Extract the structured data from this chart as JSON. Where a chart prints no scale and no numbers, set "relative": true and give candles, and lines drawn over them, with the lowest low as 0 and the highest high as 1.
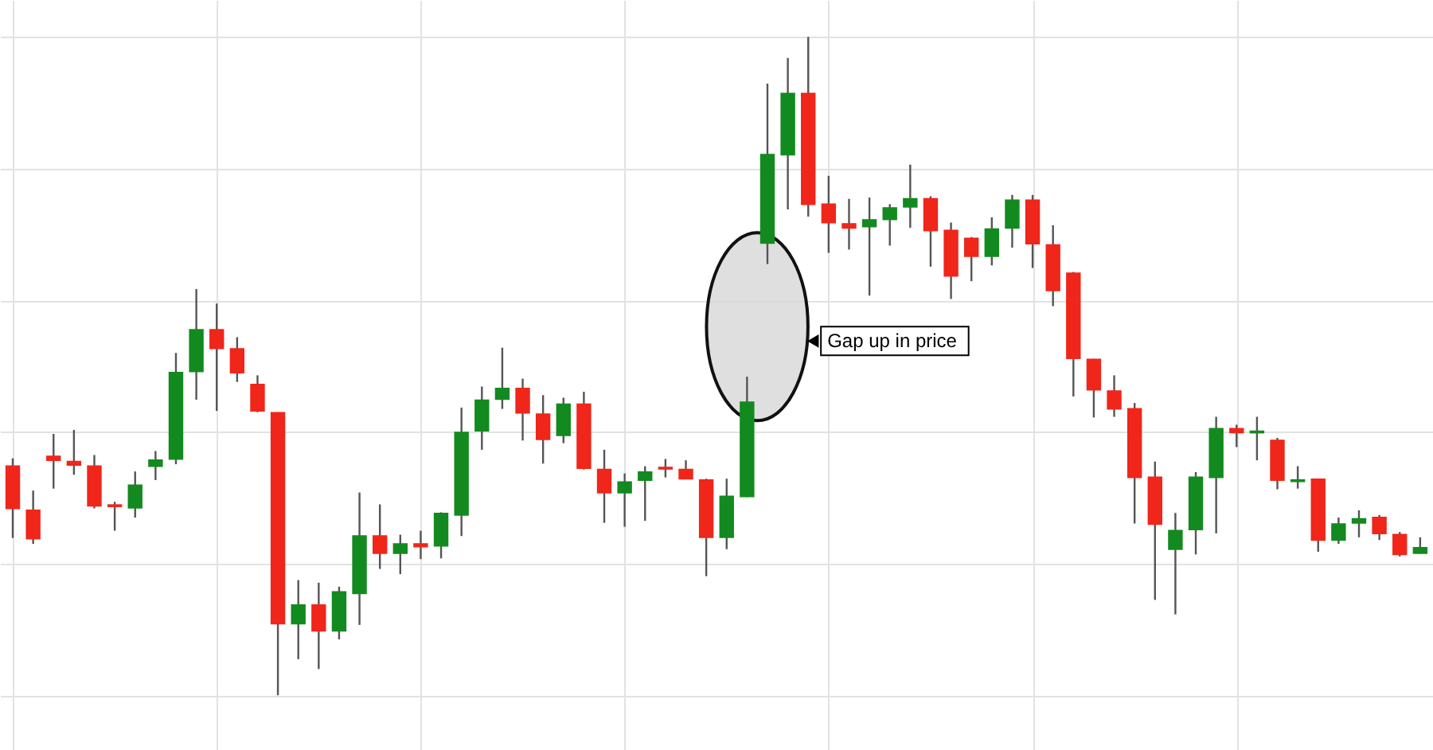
{
  "chart_data": {
    "type": "candlestick",
    "relative": true,
    "grid": true,
    "categories": [
      null,
      null,
      null,
      null,
      null,
      null,
      null,
      null,
      null,
      null,
      null,
      null,
      null,
      null,
      null,
      null,
      null,
      null,
      null,
      null,
      null,
      null,
      null,
      null,
      null,
      null,
      null,
      null,
      null,
      null,
      null,
      null,
      null,
      null,
      null,
      null,
      null,
      null,
      null,
      null,
      null,
      null,
      null,
      null,
      null,
      null,
      null,
      null,
      null,
      null,
      null,
      null,
      null,
      null,
      null,
      null,
      null,
      null,
      null,
      null,
      null,
      null,
      null,
      null,
      null,
      null,
      null,
      null,
      null,
      null
    ],
    "ohlc": [
      [
        0.348,
        0.36,
        0.239,
        0.284
      ],
      [
        0.281,
        0.311,
        0.23,
        0.238
      ],
      [
        0.363,
        0.397,
        0.314,
        0.357
      ],
      [
        0.355,
        0.403,
        0.335,
        0.35
      ],
      [
        0.348,
        0.365,
        0.284,
        0.288
      ],
      [
        0.289,
        0.294,
        0.25,
        0.287
      ],
      [
        0.285,
        0.34,
        0.27,
        0.319
      ],
      [
        0.348,
        0.371,
        0.327,
        0.357
      ],
      [
        0.359,
        0.52,
        0.351,
        0.49
      ],
      [
        0.492,
        0.617,
        0.449,
        0.555
      ],
      [
        0.555,
        0.595,
        0.432,
        0.527
      ],
      [
        0.526,
        0.544,
        0.476,
        0.49
      ],
      [
        0.472,
        0.486,
        0.43,
        0.432
      ],
      [
        0.429,
        0.43,
        0,
        0.109
      ],
      [
        0.109,
        0.175,
        0.055,
        0.137
      ],
      [
        0.137,
        0.171,
        0.04,
        0.098
      ],
      [
        0.098,
        0.165,
        0.085,
        0.157
      ],
      [
        0.155,
        0.308,
        0.107,
        0.242
      ],
      [
        0.242,
        0.29,
        0.192,
        0.216
      ],
      [
        0.216,
        0.244,
        0.184,
        0.23
      ],
      [
        0.23,
        0.25,
        0.207,
        0.226
      ],
      [
        0.227,
        0.278,
        0.208,
        0.276
      ],
      [
        0.274,
        0.437,
        0.242,
        0.399
      ],
      [
        0.402,
        0.469,
        0.373,
        0.448
      ],
      [
        0.45,
        0.528,
        0.435,
        0.466
      ],
      [
        0.466,
        0.481,
        0.387,
        0.429
      ],
      [
        0.427,
        0.456,
        0.352,
        0.389
      ],
      [
        0.395,
        0.452,
        0.383,
        0.442
      ],
      [
        0.442,
        0.461,
        0.343,
        0.345
      ],
      [
        0.343,
        0.373,
        0.262,
        0.308
      ],
      [
        0.308,
        0.337,
        0.256,
        0.324
      ],
      [
        0.327,
        0.348,
        0.265,
        0.339
      ],
      [
        0.346,
        0.359,
        0.331,
        0.344
      ],
      [
        0.343,
        0.357,
        0.328,
        0.329
      ],
      [
        0.327,
        0.329,
        0.181,
        0.24
      ],
      [
        0.24,
        0.329,
        0.222,
        0.302
      ],
      [
        0.302,
        0.484,
        0.301,
        0.445
      ],
      [
        0.687,
        0.929,
        0.655,
        0.821
      ],
      [
        0.821,
        0.968,
        0.738,
        0.914
      ],
      [
        0.914,
        1,
        0.727,
        0.746
      ],
      [
        0.746,
        0.789,
        0.672,
        0.718
      ],
      [
        0.716,
        0.754,
        0.677,
        0.71
      ],
      [
        0.712,
        0.756,
        0.607,
        0.722
      ],
      [
        0.723,
        0.746,
        0.683,
        0.74
      ],
      [
        0.742,
        0.806,
        0.71,
        0.754
      ],
      [
        0.754,
        0.758,
        0.651,
        0.706
      ],
      [
        0.706,
        0.718,
        0.602,
        0.637
      ],
      [
        0.694,
        0.696,
        0.629,
        0.667
      ],
      [
        0.667,
        0.726,
        0.653,
        0.708
      ],
      [
        0.71,
        0.76,
        0.68,
        0.752
      ],
      [
        0.752,
        0.76,
        0.649,
        0.686
      ],
      [
        0.684,
        0.714,
        0.591,
        0.615
      ],
      [
        0.641,
        0.643,
        0.454,
        0.512
      ],
      [
        0.51,
        0.511,
        0.422,
        0.464
      ],
      [
        0.462,
        0.486,
        0.423,
        0.435
      ],
      [
        0.435,
        0.444,
        0.261,
        0.331
      ],
      [
        0.331,
        0.355,
        0.145,
        0.26
      ],
      [
        0.222,
        0.277,
        0.123,
        0.25
      ],
      [
        0.252,
        0.339,
        0.214,
        0.331
      ],
      [
        0.331,
        0.423,
        0.246,
        0.405
      ],
      [
        0.405,
        0.411,
        0.377,
        0.399
      ],
      [
        0.399,
        0.423,
        0.357,
        0.401
      ],
      [
        0.387,
        0.391,
        0.313,
        0.327
      ],
      [
        0.325,
        0.348,
        0.314,
        0.327
      ],
      [
        0.328,
        0.329,
        0.218,
        0.236
      ],
      [
        0.236,
        0.27,
        0.23,
        0.26
      ],
      [
        0.262,
        0.281,
        0.24,
        0.268
      ],
      [
        0.27,
        0.274,
        0.236,
        0.246
      ],
      [
        0.244,
        0.248,
        0.211,
        0.214
      ],
      [
        0.216,
        0.24,
        0.215,
        0.224
      ]
    ],
    "colors": [
      "#f0261b",
      "#f0261b",
      "#f0261b",
      "#f0261b",
      "#f0261b",
      "#f0261b",
      "#138a1f",
      "#138a1f",
      "#138a1f",
      "#138a1f",
      "#f0261b",
      "#f0261b",
      "#f0261b",
      "#f0261b",
      "#138a1f",
      "#f0261b",
      "#138a1f",
      "#138a1f",
      "#f0261b",
      "#138a1f",
      "#f0261b",
      "#138a1f",
      "#138a1f",
      "#138a1f",
      "#138a1f",
      "#f0261b",
      "#f0261b",
      "#138a1f",
      "#f0261b",
      "#f0261b",
      "#138a1f",
      "#138a1f",
      "#f0261b",
      "#f0261b",
      "#f0261b",
      "#138a1f",
      "#138a1f",
      "#138a1f",
      "#138a1f",
      "#f0261b",
      "#f0261b",
      "#f0261b",
      "#138a1f",
      "#138a1f",
      "#138a1f",
      "#f0261b",
      "#f0261b",
      "#f0261b",
      "#138a1f",
      "#138a1f",
      "#f0261b",
      "#f0261b",
      "#f0261b",
      "#f0261b",
      "#f0261b",
      "#f0261b",
      "#f0261b",
      "#138a1f",
      "#138a1f",
      "#138a1f",
      "#f0261b",
      "#138a1f",
      "#f0261b",
      "#138a1f",
      "#f0261b",
      "#138a1f",
      "#138a1f",
      "#f0261b",
      "#f0261b",
      "#138a1f"
    ],
    "annotations": [
      "Gap up in price"
    ]
  }
}
